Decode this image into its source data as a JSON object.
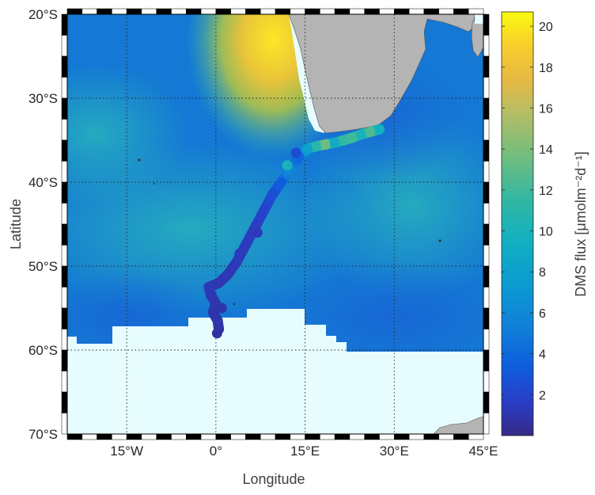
{
  "chart_data": {
    "type": "map",
    "projection": "plate-carree",
    "lon_range": [
      -25,
      45
    ],
    "lat_range": [
      -70,
      -20
    ],
    "x_ticks": [
      {
        "value": -15,
        "label": "15°W"
      },
      {
        "value": 0,
        "label": "0°"
      },
      {
        "value": 15,
        "label": "15°E"
      },
      {
        "value": 30,
        "label": "30°E"
      },
      {
        "value": 45,
        "label": "45°E"
      }
    ],
    "y_ticks": [
      {
        "value": -20,
        "label": "20°S"
      },
      {
        "value": -30,
        "label": "30°S"
      },
      {
        "value": -40,
        "label": "40°S"
      },
      {
        "value": -50,
        "label": "50°S"
      },
      {
        "value": -60,
        "label": "60°S"
      },
      {
        "value": -70,
        "label": "70°S"
      }
    ],
    "xlabel": "Longitude",
    "ylabel": "Latitude",
    "grid": "dotted",
    "colorbar": {
      "label": "DMS flux [μmolm⁻²d⁻¹]",
      "range": [
        0,
        20.7
      ],
      "ticks": [
        2,
        4,
        6,
        8,
        10,
        12,
        14,
        16,
        18,
        20
      ],
      "colormap": "parula-like"
    },
    "ship_track": [
      {
        "lon": 0.5,
        "lat": -57.5,
        "flux": 0.8
      },
      {
        "lon": 0.3,
        "lat": -56.5,
        "flux": 0.9
      },
      {
        "lon": -0.5,
        "lat": -55.5,
        "flux": 1.0
      },
      {
        "lon": 0.0,
        "lat": -54.5,
        "flux": 1.0
      },
      {
        "lon": -0.8,
        "lat": -53.5,
        "flux": 1.1
      },
      {
        "lon": -1.2,
        "lat": -52.5,
        "flux": 1.2
      },
      {
        "lon": 0.5,
        "lat": -52.0,
        "flux": 1.1
      },
      {
        "lon": 2.0,
        "lat": -51.0,
        "flux": 1.2
      },
      {
        "lon": 3.5,
        "lat": -49.5,
        "flux": 1.3
      },
      {
        "lon": 5.0,
        "lat": -47.5,
        "flux": 1.4
      },
      {
        "lon": 6.5,
        "lat": -45.5,
        "flux": 1.5
      },
      {
        "lon": 8.0,
        "lat": -43.5,
        "flux": 1.8
      },
      {
        "lon": 9.5,
        "lat": -41.5,
        "flux": 2.5
      },
      {
        "lon": 11.0,
        "lat": -40.0,
        "flux": 3.5
      },
      {
        "lon": 12.5,
        "lat": -38.5,
        "flux": 6.0
      },
      {
        "lon": 14.0,
        "lat": -37.0,
        "flux": 4.0
      },
      {
        "lon": 15.5,
        "lat": -36.0,
        "flux": 8.0
      },
      {
        "lon": 17.0,
        "lat": -35.7,
        "flux": 11.0
      },
      {
        "lon": 18.5,
        "lat": -35.5,
        "flux": 13.5
      },
      {
        "lon": 20.0,
        "lat": -35.3,
        "flux": 9.0
      },
      {
        "lon": 21.5,
        "lat": -35.0,
        "flux": 11.5
      },
      {
        "lon": 23.0,
        "lat": -34.7,
        "flux": 12.0
      },
      {
        "lon": 24.5,
        "lat": -34.3,
        "flux": 10.0
      },
      {
        "lon": 26.0,
        "lat": -34.0,
        "flux": 12.5
      },
      {
        "lon": 27.5,
        "lat": -33.7,
        "flux": 9.5
      },
      {
        "lon": 13.5,
        "lat": -36.5,
        "flux": 2.5
      },
      {
        "lon": 12.0,
        "lat": -38.0,
        "flux": 10.0
      },
      {
        "lon": 7.0,
        "lat": -46.0,
        "flux": 1.3
      },
      {
        "lon": 4.0,
        "lat": -48.5,
        "flux": 1.4
      },
      {
        "lon": 1.0,
        "lat": -55.0,
        "flux": 1.0
      },
      {
        "lon": 0.2,
        "lat": -58.0,
        "flux": 0.7
      }
    ],
    "colors": {
      "land": "#b4b4b4",
      "ice": "#e6fcff",
      "frame_dark": "#000000",
      "frame_light": "#ffffff"
    }
  }
}
